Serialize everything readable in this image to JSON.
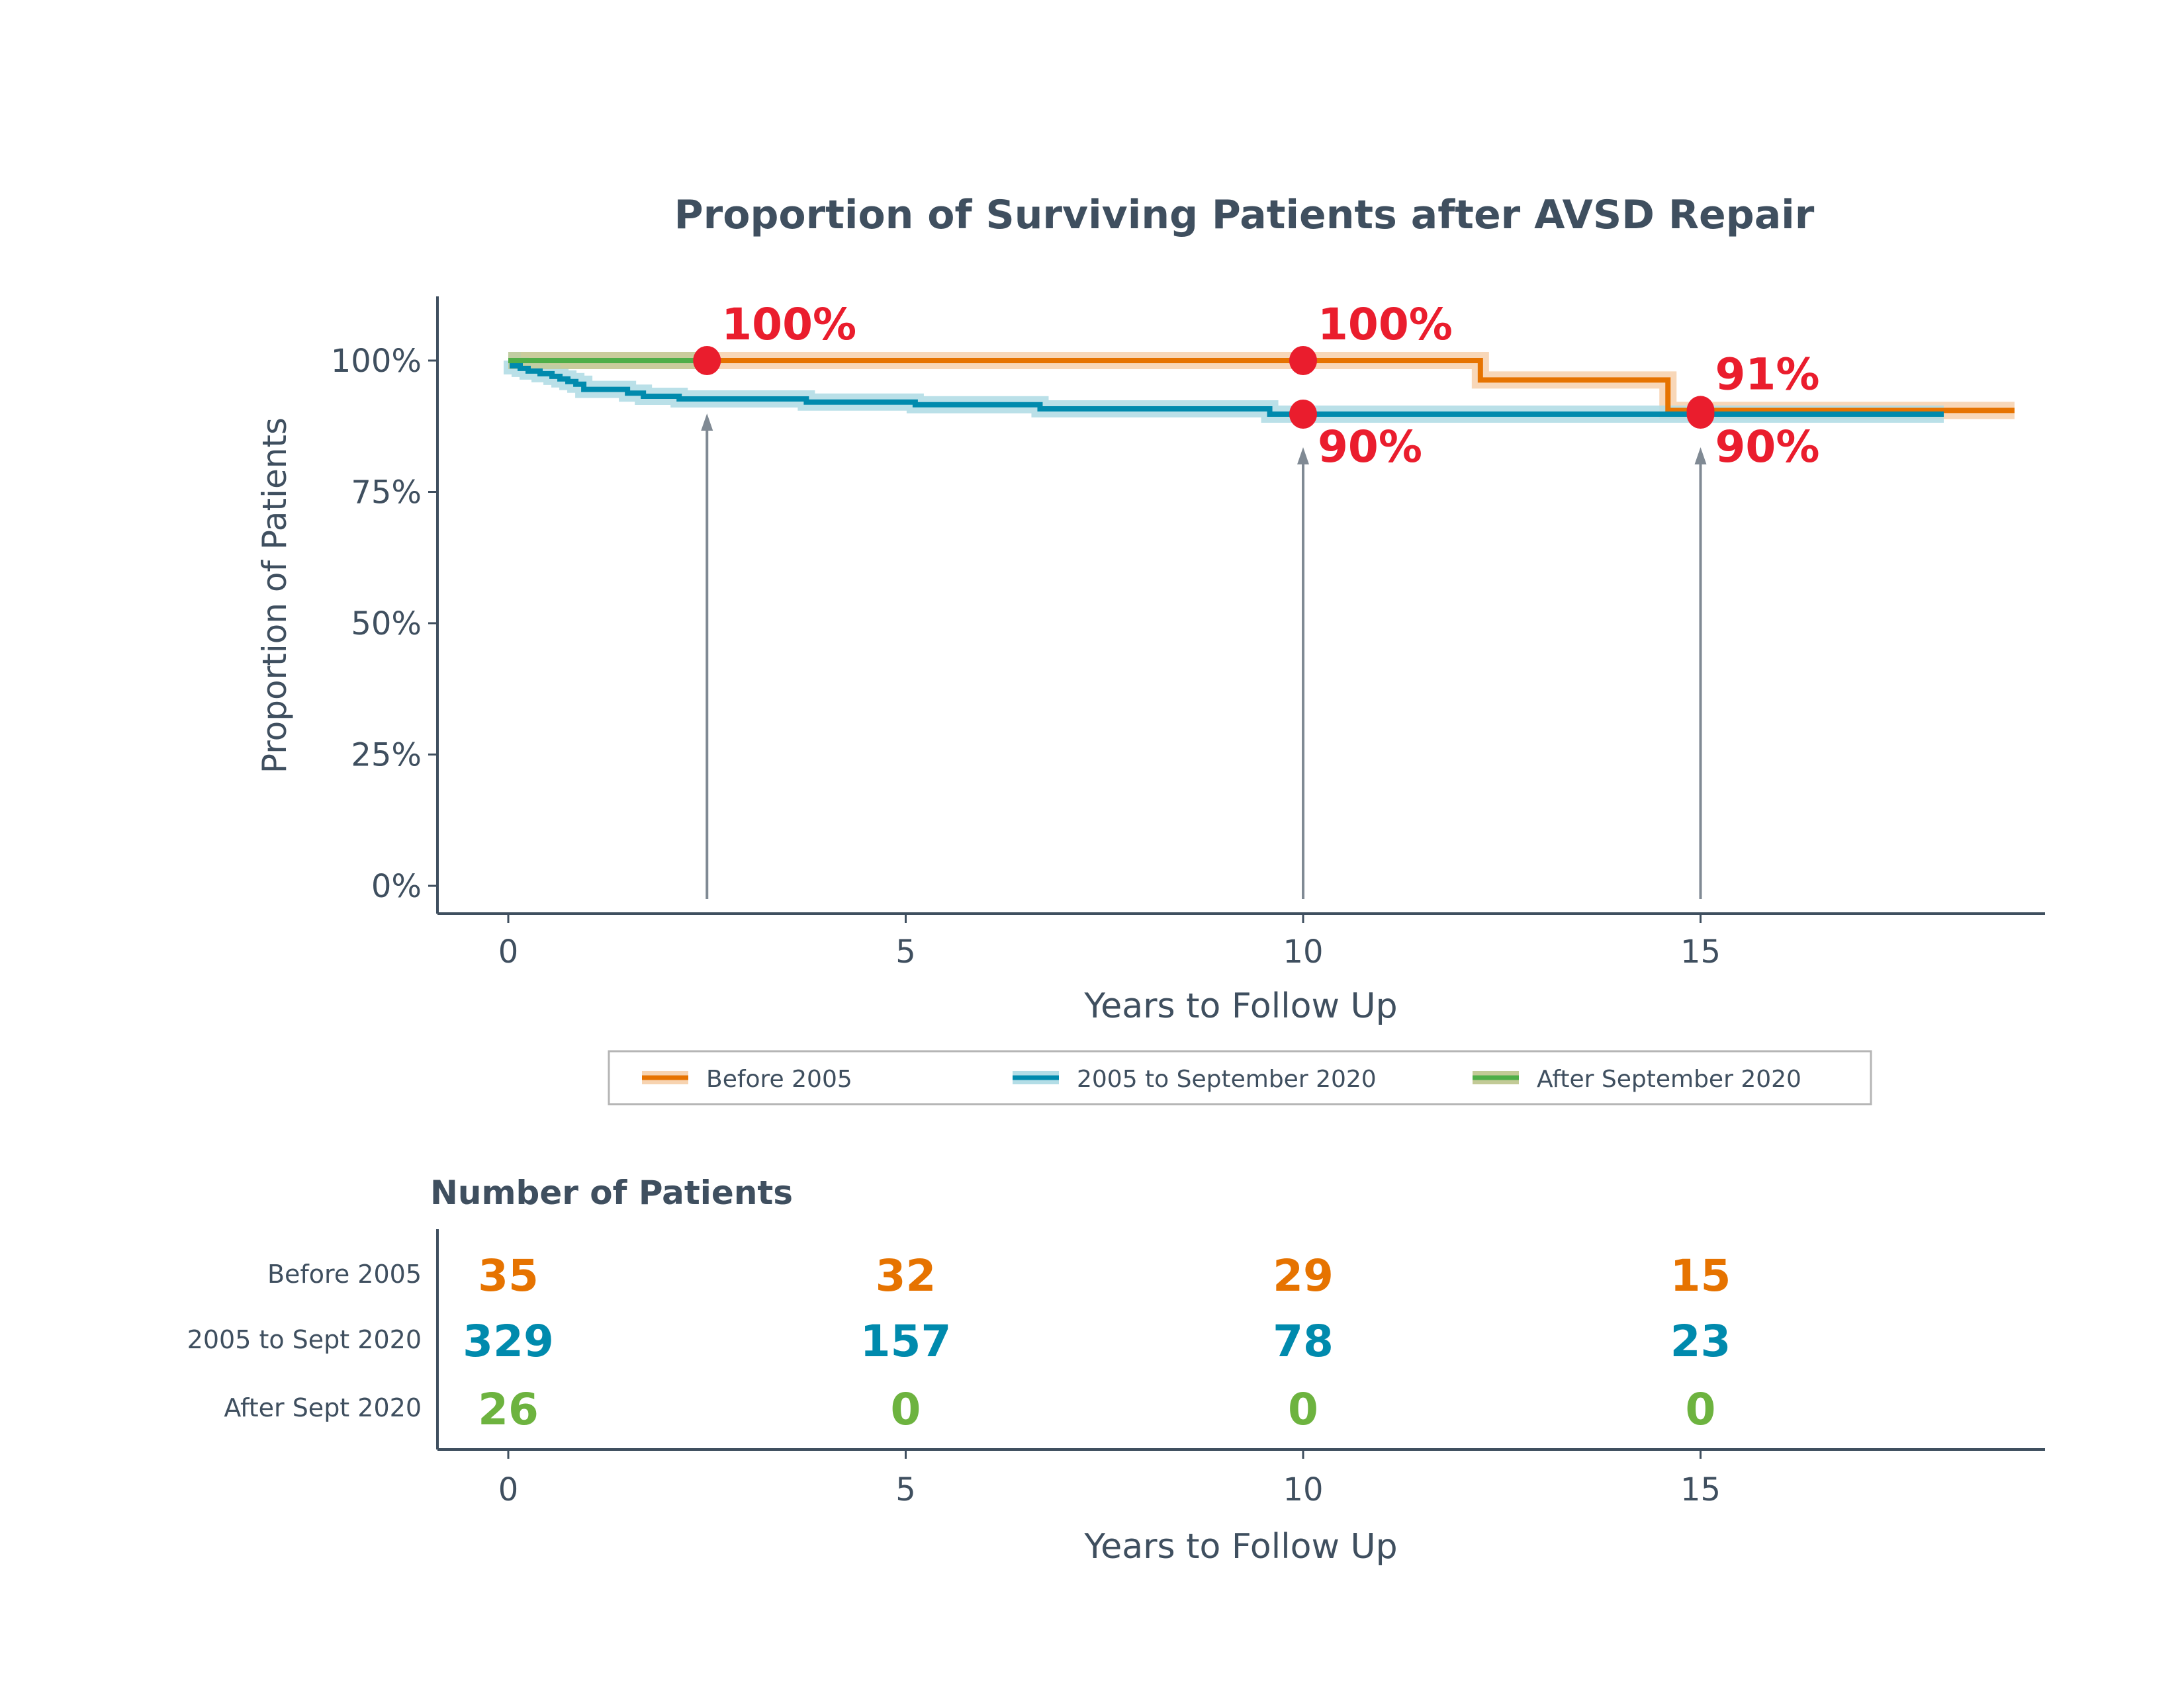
{
  "chart_data": [
    {
      "type": "line",
      "subtype": "step (Kaplan-Meier survival)",
      "title": "Proportion of Surviving Patients after AVSD Repair",
      "xlabel": "Years to Follow Up",
      "ylabel": "Proportion of Patients",
      "xlim": [
        -0.9,
        19.3
      ],
      "ylim": [
        -0.05,
        1.12
      ],
      "xticks": [
        0,
        5,
        10,
        15
      ],
      "xtick_labels": [
        "0",
        "5",
        "10",
        "15"
      ],
      "yticks": [
        0,
        0.25,
        0.5,
        0.75,
        1.0
      ],
      "ytick_labels": [
        "0%",
        "25%",
        "50%",
        "75%",
        "100%"
      ],
      "grid": false,
      "legend_position": "bottom",
      "series": [
        {
          "name": "Before 2005",
          "color": "#E67300",
          "band_color": "#F7D3B0",
          "steps": [
            [
              0,
              1.0
            ],
            [
              12.23,
              0.963
            ],
            [
              14.59,
              0.905
            ],
            [
              18.95,
              0.905
            ]
          ]
        },
        {
          "name": "2005 to September 2020",
          "color": "#008AAD",
          "band_color": "#B3DDE6",
          "steps": [
            [
              0,
              1.0
            ],
            [
              0.05,
              0.99
            ],
            [
              0.15,
              0.985
            ],
            [
              0.25,
              0.98
            ],
            [
              0.4,
              0.975
            ],
            [
              0.55,
              0.97
            ],
            [
              0.65,
              0.965
            ],
            [
              0.75,
              0.96
            ],
            [
              0.85,
              0.955
            ],
            [
              0.95,
              0.945
            ],
            [
              1.5,
              0.938
            ],
            [
              1.7,
              0.932
            ],
            [
              2.15,
              0.927
            ],
            [
              3.75,
              0.921
            ],
            [
              5.12,
              0.916
            ],
            [
              6.69,
              0.908
            ],
            [
              9.58,
              0.898
            ],
            [
              18.06,
              0.898
            ]
          ]
        },
        {
          "name": "After September 2020",
          "color": "#4FAE48",
          "band_color": "#C2CA96",
          "steps": [
            [
              0,
              1.0
            ],
            [
              2.5,
              1.0
            ]
          ]
        }
      ],
      "annotations": [
        {
          "x": 2.5,
          "y": 1.0,
          "label": "100%",
          "position": "above"
        },
        {
          "x": 10,
          "y": 1.0,
          "label": "100%",
          "position": "above"
        },
        {
          "x": 10,
          "y": 0.898,
          "label": "90%",
          "position": "below"
        },
        {
          "x": 15,
          "y": 0.905,
          "label": "91%",
          "position": "above"
        },
        {
          "x": 15,
          "y": 0.898,
          "label": "90%",
          "position": "below"
        }
      ],
      "arrows_at_x": [
        2.5,
        10,
        15
      ],
      "marker_color": "#EA1D2D"
    },
    {
      "type": "table",
      "title": "Number of Patients",
      "xlabel": "Years to Follow Up",
      "xtick_labels": [
        "0",
        "5",
        "10",
        "15"
      ],
      "columns_x": [
        0,
        5,
        10,
        15
      ],
      "rows": [
        {
          "label": "Before 2005",
          "color": "#E67300",
          "values": [
            "35",
            "32",
            "29",
            "15"
          ]
        },
        {
          "label": "2005 to Sept 2020",
          "color": "#008AAD",
          "values": [
            "329",
            "157",
            "78",
            "23"
          ]
        },
        {
          "label": "After Sept 2020",
          "color": "#6DB33F",
          "values": [
            "26",
            "0",
            "0",
            "0"
          ]
        }
      ]
    }
  ]
}
